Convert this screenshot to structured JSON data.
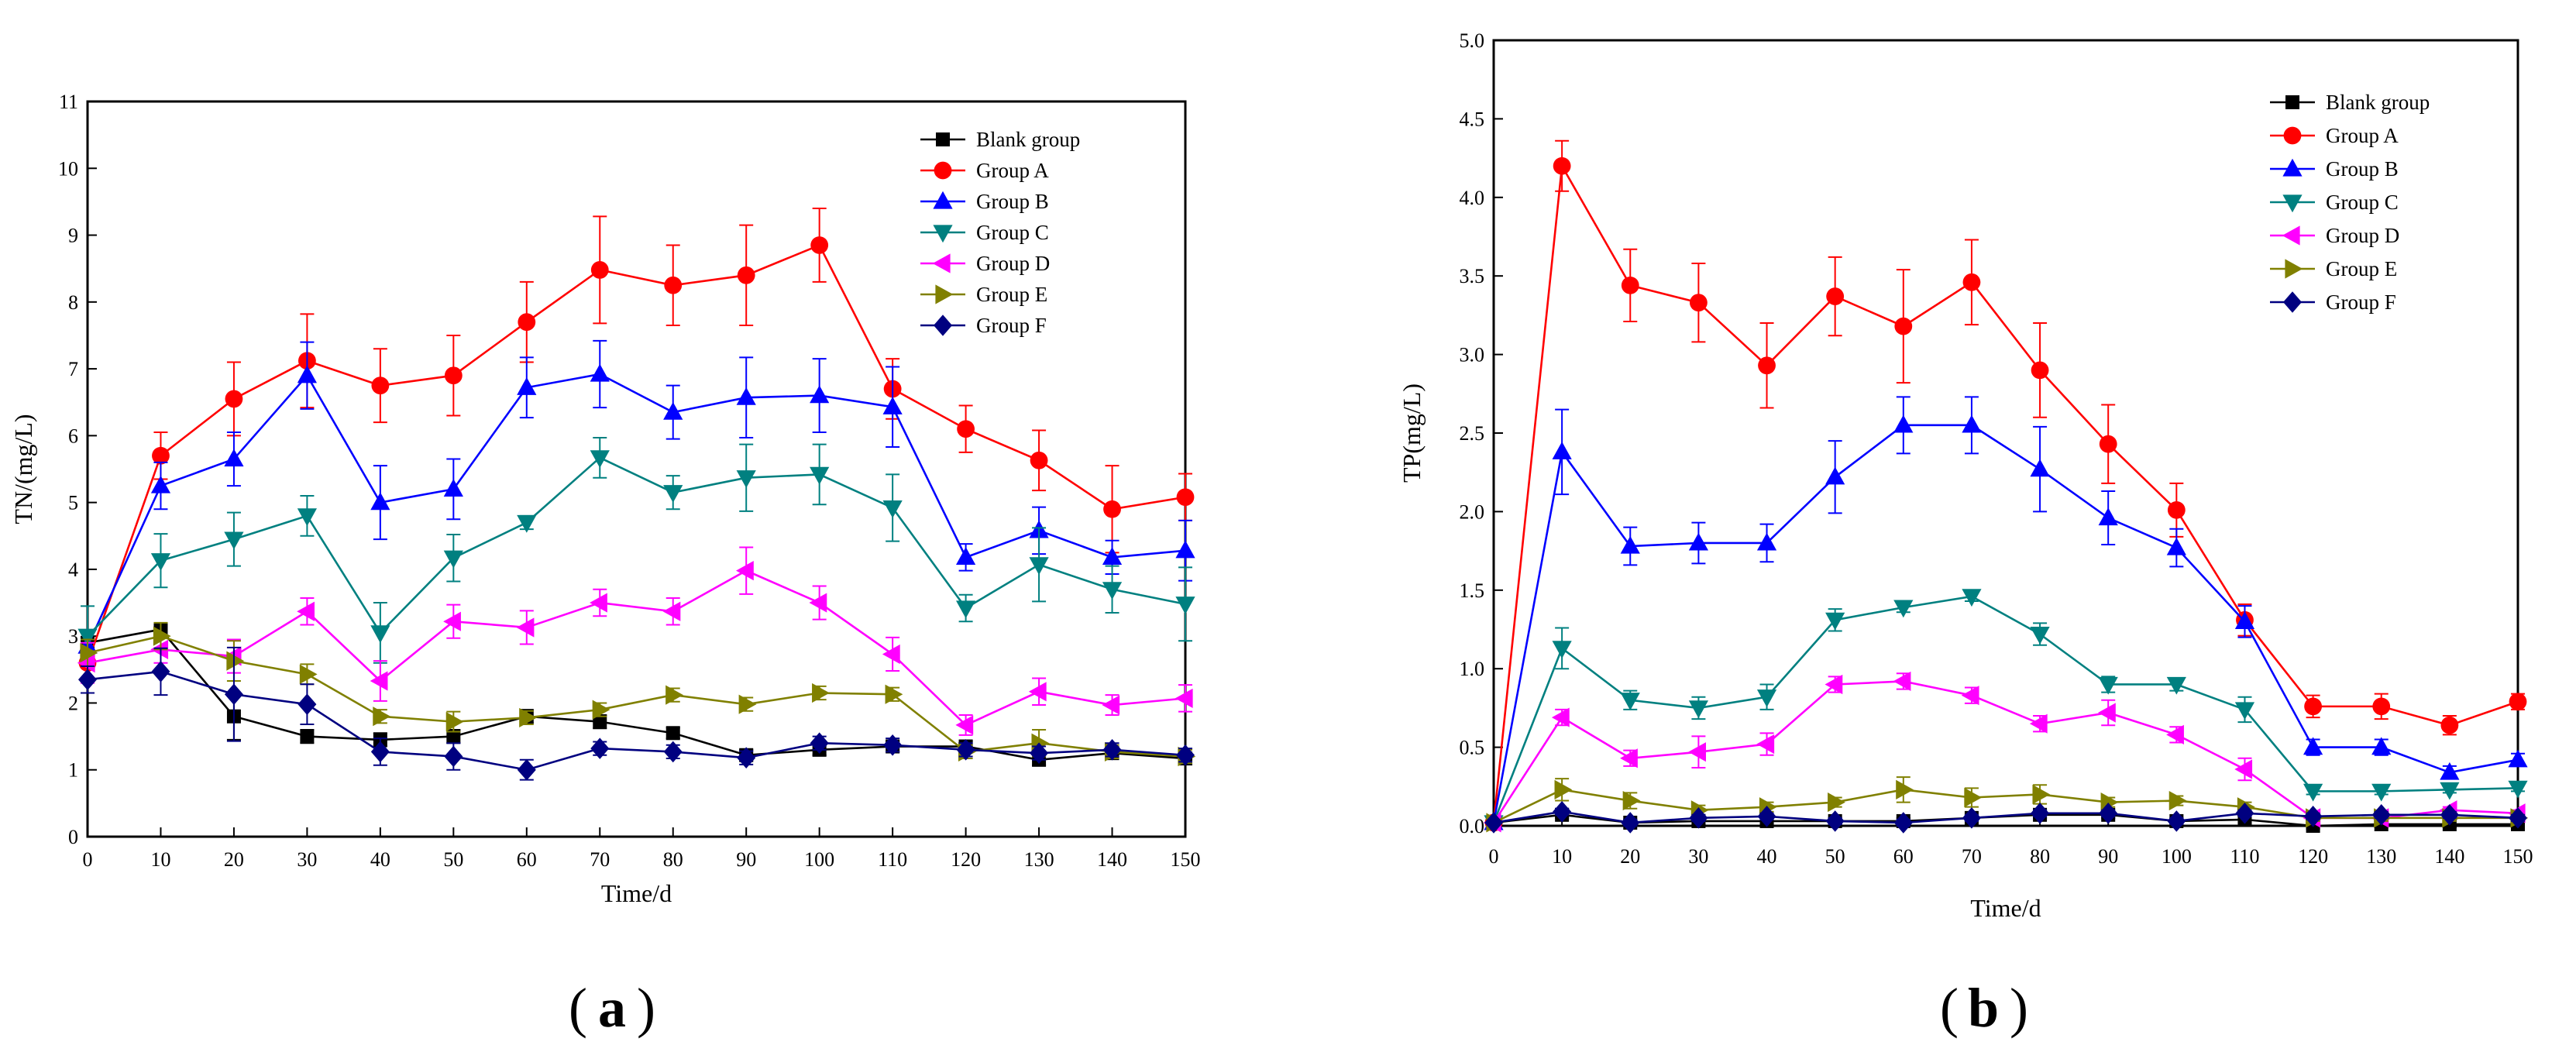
{
  "chart_data": [
    {
      "type": "line",
      "panel_label": "a",
      "xlabel": "Time/d",
      "ylabel": "TN/(mg/L)",
      "xlim": [
        0,
        150
      ],
      "ylim": [
        0,
        11
      ],
      "xticks": [
        "0",
        "10",
        "20",
        "30",
        "40",
        "50",
        "60",
        "70",
        "80",
        "90",
        "100",
        "110",
        "120",
        "130",
        "140",
        "150"
      ],
      "yticks": [
        "0",
        "1",
        "2",
        "3",
        "4",
        "5",
        "6",
        "7",
        "8",
        "9",
        "10",
        "11"
      ],
      "legend_position": "top-right",
      "x": [
        0,
        10,
        20,
        30,
        40,
        50,
        60,
        70,
        80,
        90,
        100,
        110,
        120,
        130,
        140,
        150
      ],
      "series": [
        {
          "name": "Blank group",
          "color": "#000000",
          "marker": "square",
          "values": [
            2.9,
            3.1,
            1.8,
            1.5,
            1.45,
            1.5,
            1.8,
            1.72,
            1.55,
            1.22,
            1.3,
            1.35,
            1.35,
            1.15,
            1.25,
            1.17
          ],
          "errors": [
            0,
            0,
            0.35,
            0.1,
            0.1,
            0.1,
            0.1,
            0.1,
            0.08,
            0.08,
            0.08,
            0.08,
            0.08,
            0.08,
            0.08,
            0.08
          ]
        },
        {
          "name": "Group A",
          "color": "#ff0000",
          "marker": "circle",
          "values": [
            2.6,
            5.7,
            6.55,
            7.12,
            6.75,
            6.9,
            7.7,
            8.48,
            8.25,
            8.4,
            8.85,
            6.7,
            6.1,
            5.63,
            4.9,
            5.08
          ],
          "errors": [
            0,
            0.35,
            0.55,
            0.7,
            0.55,
            0.6,
            0.6,
            0.8,
            0.6,
            0.75,
            0.55,
            0.45,
            0.35,
            0.45,
            0.65,
            0.35
          ]
        },
        {
          "name": "Group B",
          "color": "#0000ff",
          "marker": "triangle-up",
          "values": [
            2.85,
            5.25,
            5.65,
            6.9,
            5.0,
            5.2,
            6.72,
            6.92,
            6.35,
            6.57,
            6.6,
            6.43,
            4.18,
            4.58,
            4.18,
            4.28
          ],
          "errors": [
            0,
            0.35,
            0.4,
            0.5,
            0.55,
            0.45,
            0.45,
            0.5,
            0.4,
            0.6,
            0.55,
            0.6,
            0.2,
            0.35,
            0.25,
            0.45
          ]
        },
        {
          "name": "Group C",
          "color": "#008080",
          "marker": "triangle-down",
          "values": [
            3.0,
            4.13,
            4.45,
            4.8,
            3.05,
            4.17,
            4.7,
            5.67,
            5.15,
            5.37,
            5.42,
            4.92,
            3.42,
            4.07,
            3.7,
            3.48
          ],
          "errors": [
            0.45,
            0.4,
            0.4,
            0.3,
            0.45,
            0.35,
            0.1,
            0.3,
            0.25,
            0.5,
            0.45,
            0.5,
            0.2,
            0.55,
            0.35,
            0.55
          ]
        },
        {
          "name": "Group D",
          "color": "#ff00ff",
          "marker": "triangle-left",
          "values": [
            2.6,
            2.8,
            2.7,
            3.37,
            2.33,
            3.22,
            3.13,
            3.5,
            3.37,
            3.98,
            3.5,
            2.73,
            1.67,
            2.17,
            1.97,
            2.07
          ],
          "errors": [
            0.3,
            0.2,
            0.25,
            0.2,
            0.3,
            0.25,
            0.25,
            0.2,
            0.2,
            0.35,
            0.25,
            0.25,
            0.15,
            0.2,
            0.15,
            0.2
          ]
        },
        {
          "name": "Group E",
          "color": "#808000",
          "marker": "triangle-right",
          "values": [
            2.75,
            3.0,
            2.63,
            2.43,
            1.8,
            1.72,
            1.78,
            1.9,
            2.12,
            1.98,
            2.15,
            2.13,
            1.27,
            1.4,
            1.27,
            1.2
          ],
          "errors": [
            0.2,
            0.2,
            0.3,
            0.15,
            0.1,
            0.15,
            0.1,
            0.1,
            0.1,
            0.1,
            0.1,
            0.1,
            0.1,
            0.2,
            0.1,
            0.1
          ]
        },
        {
          "name": "Group F",
          "color": "#000080",
          "marker": "diamond",
          "values": [
            2.35,
            2.47,
            2.13,
            1.98,
            1.27,
            1.2,
            1.0,
            1.32,
            1.27,
            1.18,
            1.4,
            1.37,
            1.3,
            1.25,
            1.3,
            1.22
          ],
          "errors": [
            0.2,
            0.35,
            0.7,
            0.3,
            0.2,
            0.2,
            0.15,
            0.1,
            0.1,
            0.1,
            0.1,
            0.1,
            0.1,
            0.1,
            0.1,
            0.1
          ]
        }
      ]
    },
    {
      "type": "line",
      "panel_label": "b",
      "xlabel": "Time/d",
      "ylabel": "TP(mg/L)",
      "xlim": [
        0,
        150
      ],
      "ylim": [
        0,
        5
      ],
      "xticks": [
        "0",
        "10",
        "20",
        "30",
        "40",
        "50",
        "60",
        "70",
        "80",
        "90",
        "100",
        "110",
        "120",
        "130",
        "140",
        "150"
      ],
      "yticks": [
        "0.0",
        "0.5",
        "1.0",
        "1.5",
        "2.0",
        "2.5",
        "3.0",
        "3.5",
        "4.0",
        "4.5",
        "5.0"
      ],
      "legend_position": "top-right",
      "x": [
        0,
        10,
        20,
        30,
        40,
        50,
        60,
        70,
        80,
        90,
        100,
        110,
        120,
        130,
        140,
        150
      ],
      "series": [
        {
          "name": "Blank group",
          "color": "#000000",
          "marker": "square",
          "values": [
            0.02,
            0.07,
            0.02,
            0.03,
            0.03,
            0.03,
            0.03,
            0.05,
            0.07,
            0.07,
            0.03,
            0.04,
            0.0,
            0.01,
            0.01,
            0.01
          ],
          "errors": [
            0,
            0.02,
            0.02,
            0.02,
            0.02,
            0.02,
            0.02,
            0.02,
            0.02,
            0.02,
            0.02,
            0.02,
            0.02,
            0.02,
            0.02,
            0.02
          ]
        },
        {
          "name": "Group A",
          "color": "#ff0000",
          "marker": "circle",
          "values": [
            0.02,
            4.2,
            3.44,
            3.33,
            2.93,
            3.37,
            3.18,
            3.46,
            2.9,
            2.43,
            2.01,
            1.31,
            0.76,
            0.76,
            0.64,
            0.79
          ],
          "errors": [
            0,
            0.16,
            0.23,
            0.25,
            0.27,
            0.25,
            0.36,
            0.27,
            0.3,
            0.25,
            0.17,
            0.1,
            0.07,
            0.08,
            0.06,
            0.05
          ]
        },
        {
          "name": "Group B",
          "color": "#0000ff",
          "marker": "triangle-up",
          "values": [
            0.02,
            2.38,
            1.78,
            1.8,
            1.8,
            2.22,
            2.55,
            2.55,
            2.27,
            1.96,
            1.77,
            1.3,
            0.5,
            0.5,
            0.34,
            0.42
          ],
          "errors": [
            0,
            0.27,
            0.12,
            0.13,
            0.12,
            0.23,
            0.18,
            0.18,
            0.27,
            0.17,
            0.12,
            0.1,
            0.05,
            0.05,
            0.04,
            0.04
          ]
        },
        {
          "name": "Group C",
          "color": "#008080",
          "marker": "triangle-down",
          "values": [
            0.02,
            1.13,
            0.8,
            0.75,
            0.82,
            1.31,
            1.39,
            1.46,
            1.22,
            0.9,
            0.9,
            0.74,
            0.22,
            0.22,
            0.23,
            0.24
          ],
          "errors": [
            0,
            0.13,
            0.06,
            0.07,
            0.08,
            0.07,
            0.03,
            0.03,
            0.07,
            0.05,
            0.04,
            0.08,
            0.02,
            0.02,
            0.02,
            0.02
          ]
        },
        {
          "name": "Group D",
          "color": "#ff00ff",
          "marker": "triangle-left",
          "values": [
            0.02,
            0.69,
            0.43,
            0.47,
            0.52,
            0.9,
            0.92,
            0.83,
            0.65,
            0.72,
            0.58,
            0.36,
            0.05,
            0.05,
            0.1,
            0.08
          ],
          "errors": [
            0,
            0.05,
            0.05,
            0.1,
            0.07,
            0.05,
            0.05,
            0.05,
            0.05,
            0.08,
            0.05,
            0.07,
            0.02,
            0.02,
            0.02,
            0.02
          ]
        },
        {
          "name": "Group E",
          "color": "#808000",
          "marker": "triangle-right",
          "values": [
            0.02,
            0.23,
            0.16,
            0.1,
            0.12,
            0.15,
            0.23,
            0.18,
            0.2,
            0.15,
            0.16,
            0.12,
            0.05,
            0.05,
            0.05,
            0.05
          ],
          "errors": [
            0,
            0.07,
            0.05,
            0.03,
            0.03,
            0.03,
            0.08,
            0.06,
            0.06,
            0.03,
            0.03,
            0.03,
            0.02,
            0.02,
            0.02,
            0.02
          ]
        },
        {
          "name": "Group F",
          "color": "#000080",
          "marker": "diamond",
          "values": [
            0.02,
            0.09,
            0.02,
            0.05,
            0.06,
            0.03,
            0.02,
            0.05,
            0.08,
            0.08,
            0.03,
            0.08,
            0.06,
            0.07,
            0.07,
            0.05
          ],
          "errors": [
            0,
            0.02,
            0.02,
            0.02,
            0.02,
            0.02,
            0.02,
            0.02,
            0.02,
            0.02,
            0.02,
            0.02,
            0.02,
            0.02,
            0.02,
            0.02
          ]
        }
      ]
    }
  ],
  "panels": {
    "a_label": "a",
    "b_label": "b"
  }
}
